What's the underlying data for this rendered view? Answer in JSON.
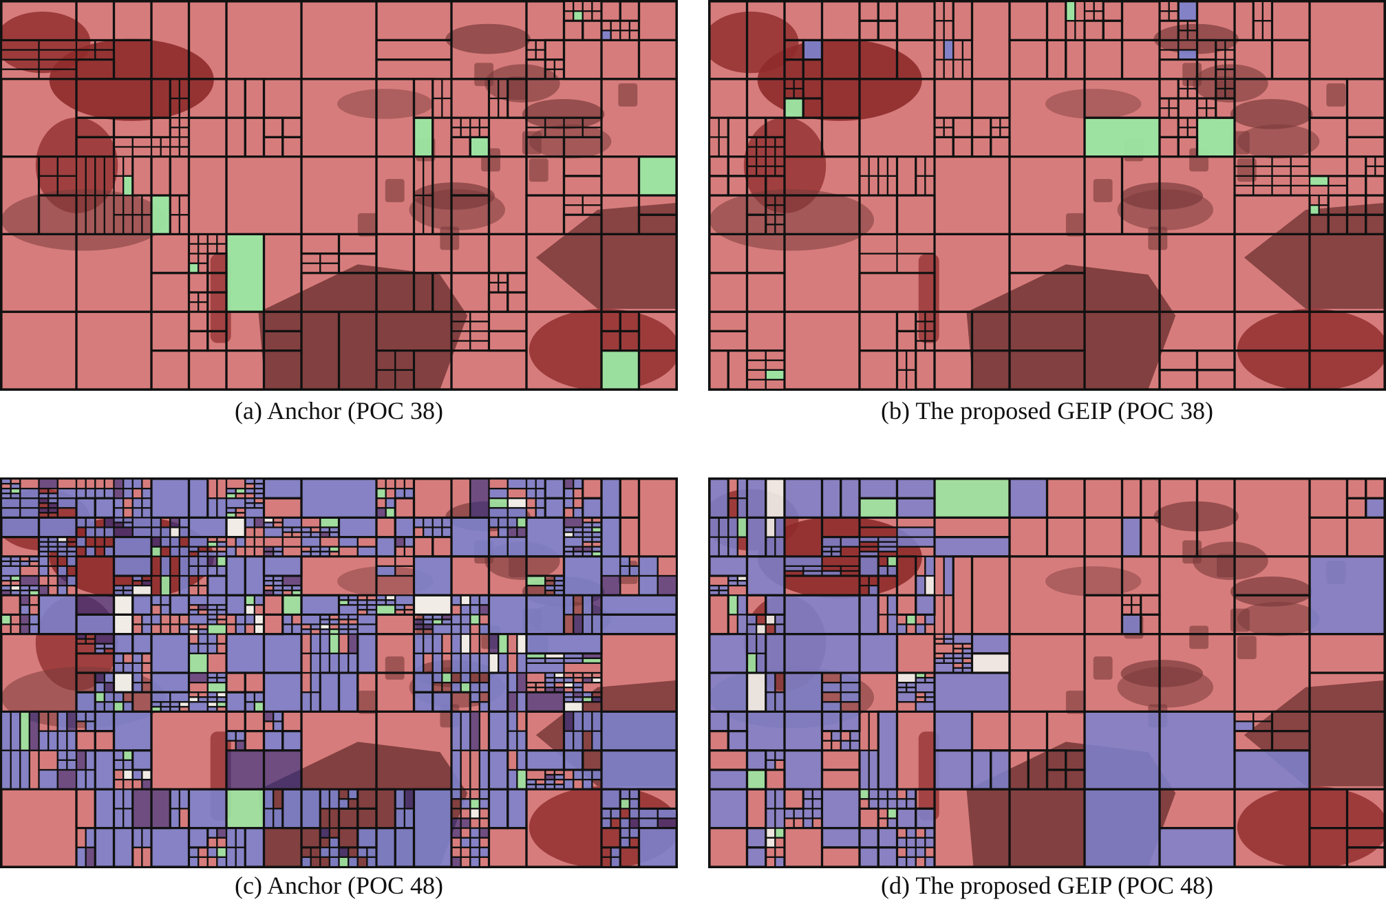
{
  "figure": {
    "panels": [
      {
        "id": "a",
        "caption": "(a) Anchor (POC 38)",
        "partition": "coarse"
      },
      {
        "id": "b",
        "caption": "(b) The proposed GEIP (POC 38)",
        "partition": "coarse"
      },
      {
        "id": "c",
        "caption": "(c) Anchor (POC 48)",
        "partition": "fine"
      },
      {
        "id": "d",
        "caption": "(d) The proposed GEIP (POC 48)",
        "partition": "medium"
      }
    ],
    "colors": {
      "intra_red": "#d77c7c",
      "dark_red": "#8e2b2b",
      "shadow": "#7a3a3a",
      "inter_blue": "#7b83cf",
      "dark_blue": "#2a2f86",
      "skip_green": "#9be8a3",
      "white_block": "#f2f2ec",
      "grid_line": "#111111"
    }
  }
}
